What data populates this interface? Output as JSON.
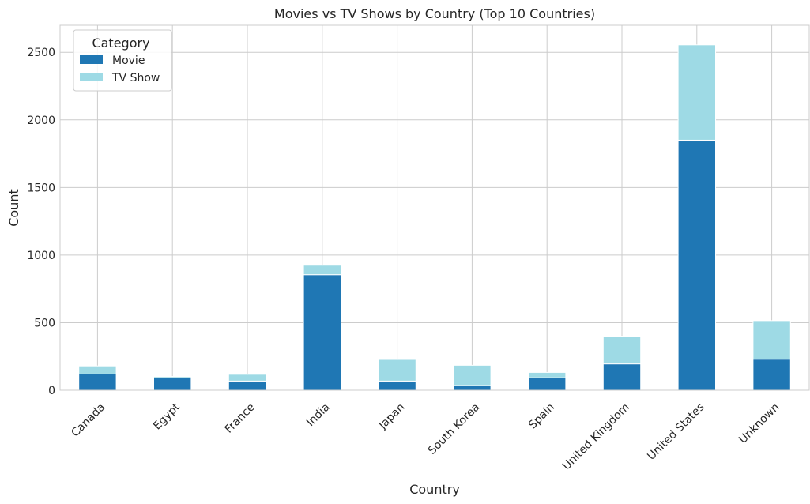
{
  "chart_data": {
    "type": "bar",
    "stacked": true,
    "title": "Movies vs TV Shows by Country (Top 10 Countries)",
    "xlabel": "Country",
    "ylabel": "Count",
    "ylim": [
      0,
      2700
    ],
    "yticks": [
      0,
      500,
      1000,
      1500,
      2000,
      2500
    ],
    "grid": true,
    "categories": [
      "Canada",
      "Egypt",
      "France",
      "India",
      "Japan",
      "South Korea",
      "Spain",
      "United Kingdom",
      "United States",
      "Unknown"
    ],
    "legend": {
      "title": "Category",
      "position": "top-left"
    },
    "series": [
      {
        "name": "Movie",
        "color": "#1f77b4",
        "values": [
          120,
          92,
          68,
          855,
          68,
          35,
          92,
          195,
          1850,
          230
        ]
      },
      {
        "name": "TV Show",
        "color": "#9edae5",
        "values": [
          60,
          10,
          50,
          70,
          160,
          150,
          40,
          205,
          705,
          285
        ]
      }
    ]
  }
}
